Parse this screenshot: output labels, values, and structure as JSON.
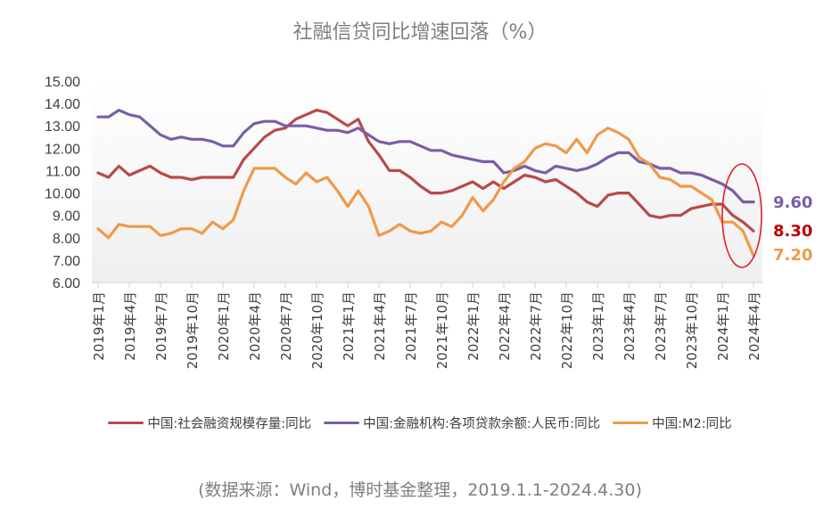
{
  "chart_data": {
    "type": "line",
    "title": "社融信贷同比增速回落（%）",
    "xlabel": "",
    "ylabel": "",
    "ylim": [
      6,
      15
    ],
    "yticks": [
      "15.00",
      "14.00",
      "13.00",
      "12.00",
      "11.00",
      "10.00",
      "9.00",
      "8.00",
      "7.00",
      "6.00"
    ],
    "grid": false,
    "legend_position": "bottom",
    "xtick_labels": [
      "2019年1月",
      "2019年4月",
      "2019年7月",
      "2019年10月",
      "2020年1月",
      "2020年4月",
      "2020年7月",
      "2020年10月",
      "2021年1月",
      "2021年4月",
      "2021年7月",
      "2021年10月",
      "2022年1月",
      "2022年4月",
      "2022年7月",
      "2022年10月",
      "2023年1月",
      "2023年4月",
      "2023年7月",
      "2023年10月",
      "2024年1月",
      "2024年4月"
    ],
    "series": [
      {
        "name": "中国:社会融资规模存量:同比",
        "color": "#b84a4a",
        "values": [
          10.9,
          10.7,
          11.2,
          10.8,
          11.0,
          11.2,
          10.9,
          10.7,
          10.7,
          10.6,
          10.7,
          10.7,
          10.7,
          10.7,
          11.5,
          12.0,
          12.5,
          12.8,
          12.9,
          13.3,
          13.5,
          13.7,
          13.6,
          13.3,
          13.0,
          13.3,
          12.3,
          11.7,
          11.0,
          11.0,
          10.7,
          10.3,
          10.0,
          10.0,
          10.1,
          10.3,
          10.5,
          10.2,
          10.5,
          10.2,
          10.5,
          10.8,
          10.7,
          10.5,
          10.6,
          10.3,
          10.0,
          9.6,
          9.4,
          9.9,
          10.0,
          10.0,
          9.5,
          9.0,
          8.9,
          9.0,
          9.0,
          9.3,
          9.4,
          9.5,
          9.5,
          9.0,
          8.7,
          8.3
        ]
      },
      {
        "name": "中国:金融机构:各项贷款余额:人民币:同比",
        "color": "#7a5ea6",
        "values": [
          13.4,
          13.4,
          13.7,
          13.5,
          13.4,
          13.0,
          12.6,
          12.4,
          12.5,
          12.4,
          12.4,
          12.3,
          12.1,
          12.1,
          12.7,
          13.1,
          13.2,
          13.2,
          13.0,
          13.0,
          13.0,
          12.9,
          12.8,
          12.8,
          12.7,
          12.9,
          12.6,
          12.3,
          12.2,
          12.3,
          12.3,
          12.1,
          11.9,
          11.9,
          11.7,
          11.6,
          11.5,
          11.4,
          11.4,
          10.9,
          11.0,
          11.2,
          11.0,
          10.9,
          11.2,
          11.1,
          11.0,
          11.1,
          11.3,
          11.6,
          11.8,
          11.8,
          11.4,
          11.3,
          11.1,
          11.1,
          10.9,
          10.9,
          10.8,
          10.6,
          10.4,
          10.1,
          9.6,
          9.6
        ]
      },
      {
        "name": "中国:M2:同比",
        "color": "#f0994a",
        "values": [
          8.4,
          8.0,
          8.6,
          8.5,
          8.5,
          8.5,
          8.1,
          8.2,
          8.4,
          8.4,
          8.2,
          8.7,
          8.4,
          8.8,
          10.1,
          11.1,
          11.1,
          11.1,
          10.7,
          10.4,
          10.9,
          10.5,
          10.7,
          10.1,
          9.4,
          10.1,
          9.4,
          8.1,
          8.3,
          8.6,
          8.3,
          8.2,
          8.3,
          8.7,
          8.5,
          9.0,
          9.8,
          9.2,
          9.7,
          10.5,
          11.1,
          11.4,
          12.0,
          12.2,
          12.1,
          11.8,
          12.4,
          11.8,
          12.6,
          12.9,
          12.7,
          12.4,
          11.6,
          11.3,
          10.7,
          10.6,
          10.3,
          10.3,
          10.0,
          9.7,
          8.7,
          8.7,
          8.3,
          7.2
        ]
      }
    ],
    "annotations": [
      {
        "text": "9.60",
        "color": "#7a5ea6"
      },
      {
        "text": "8.30",
        "color": "#c00000"
      },
      {
        "text": "7.20",
        "color": "#f0994a"
      }
    ]
  },
  "source": "(数据来源：Wind，博时基金整理，2019.1.1-2024.4.30)"
}
